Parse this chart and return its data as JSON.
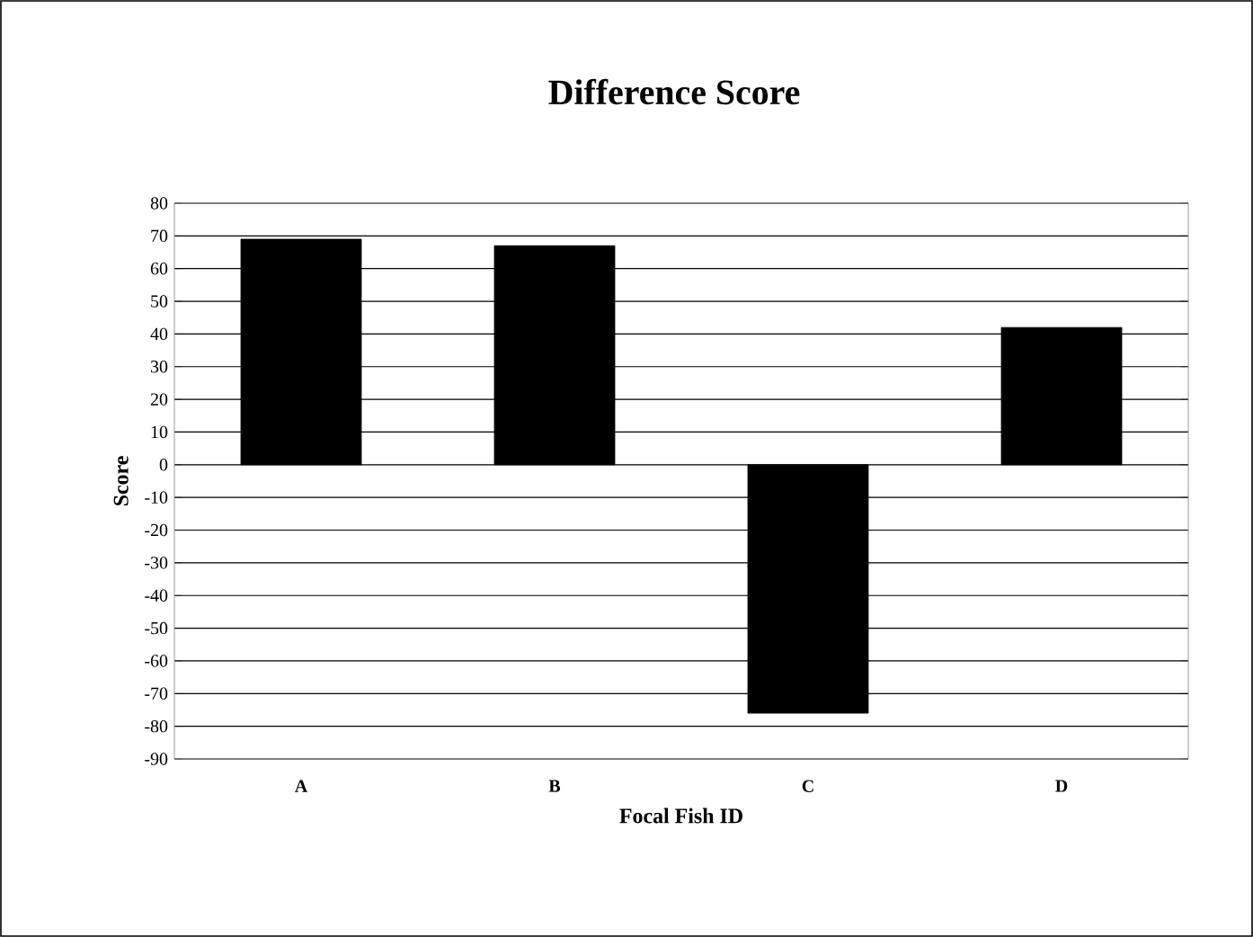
{
  "chart_data": {
    "type": "bar",
    "title": "Difference Score",
    "xlabel": "Focal Fish ID",
    "ylabel": "Score",
    "categories": [
      "A",
      "B",
      "C",
      "D"
    ],
    "values": [
      69,
      67,
      -76,
      42
    ],
    "color": "#000000",
    "ylim": [
      -90,
      80
    ],
    "yticks": [
      -90,
      -80,
      -70,
      -60,
      -50,
      -40,
      -30,
      -20,
      -10,
      0,
      10,
      20,
      30,
      40,
      50,
      60,
      70,
      80
    ],
    "grid": "y"
  }
}
